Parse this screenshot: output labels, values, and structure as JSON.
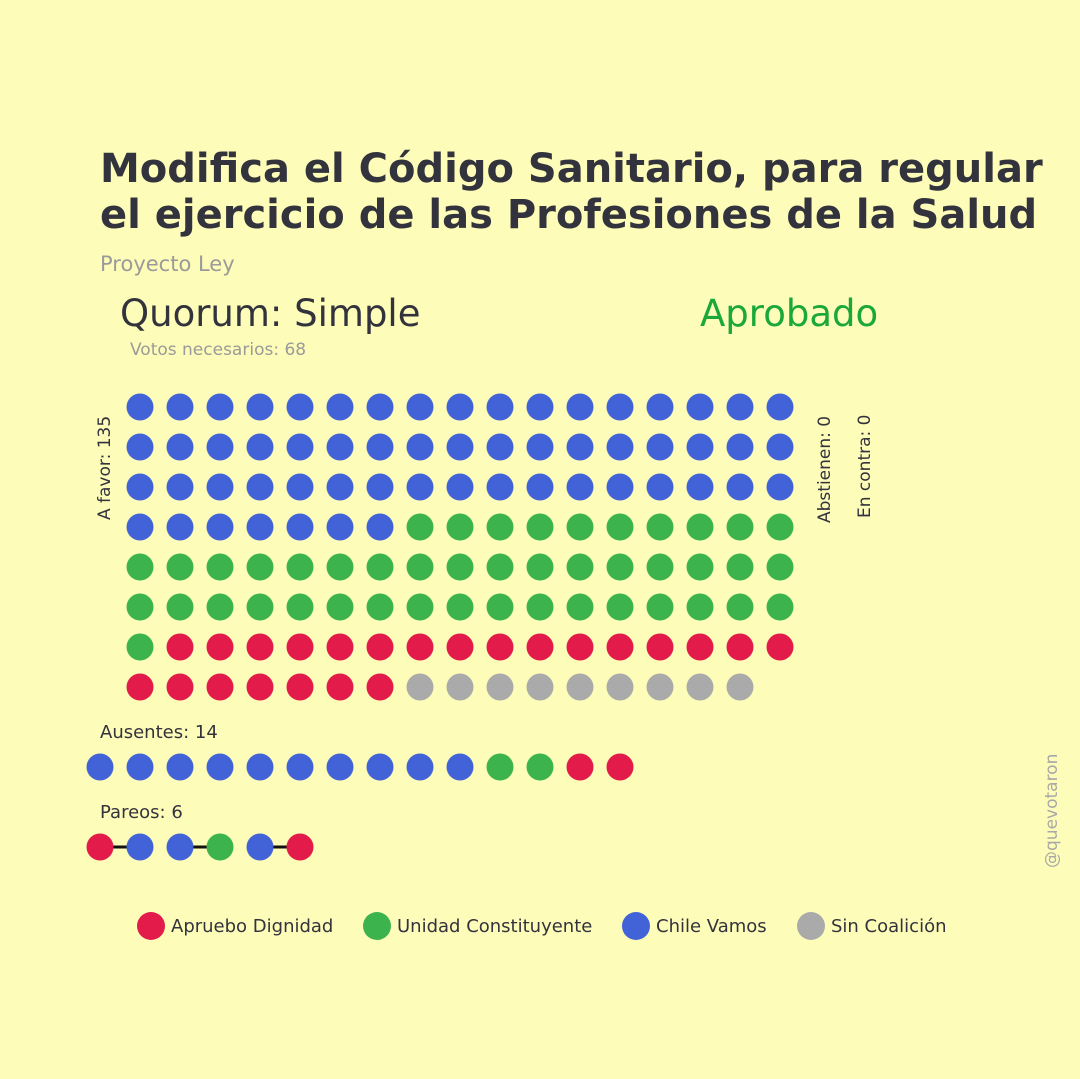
{
  "header": {
    "title_line1": "Modifica el Código Sanitario, para regular",
    "title_line2": "el ejercicio de las Profesiones de la Salud",
    "subtitle": "Proyecto Ley",
    "quorum": "Quorum: Simple",
    "needed": "Votos necesarios: 68",
    "result": "Aprobado",
    "result_color": "#1aa83a"
  },
  "labels": {
    "favor": "A favor: 135",
    "abstain": "Abstienen: 0",
    "against": "En contra: 0",
    "absent": "Ausentes: 14",
    "pairs": "Pareos: 6"
  },
  "watermark": "@quevotaron",
  "chart_data": {
    "type": "waffle",
    "colors": {
      "Apruebo Dignidad": "#e31b4b",
      "Unidad Constituyente": "#3db34d",
      "Chile Vamos": "#4263d8",
      "Sin Coalición": "#aaaaaa"
    },
    "legend": [
      "Apruebo Dignidad",
      "Unidad Constituyente",
      "Chile Vamos",
      "Sin Coalición"
    ],
    "a_favor": {
      "total": 135,
      "by_coalition": [
        {
          "name": "Chile Vamos",
          "count": 58
        },
        {
          "name": "Unidad Constituyente",
          "count": 45
        },
        {
          "name": "Apruebo Dignidad",
          "count": 23
        },
        {
          "name": "Sin Coalición",
          "count": 9
        }
      ]
    },
    "abstienen": {
      "total": 0,
      "by_coalition": []
    },
    "en_contra": {
      "total": 0,
      "by_coalition": []
    },
    "ausentes": {
      "total": 14,
      "by_coalition": [
        {
          "name": "Chile Vamos",
          "count": 10
        },
        {
          "name": "Unidad Constituyente",
          "count": 2
        },
        {
          "name": "Apruebo Dignidad",
          "count": 2
        }
      ]
    },
    "pareos": {
      "total": 6,
      "pairs": [
        [
          "Apruebo Dignidad",
          "Chile Vamos"
        ],
        [
          "Chile Vamos",
          "Unidad Constituyente"
        ],
        [
          "Chile Vamos",
          "Apruebo Dignidad"
        ]
      ]
    }
  }
}
